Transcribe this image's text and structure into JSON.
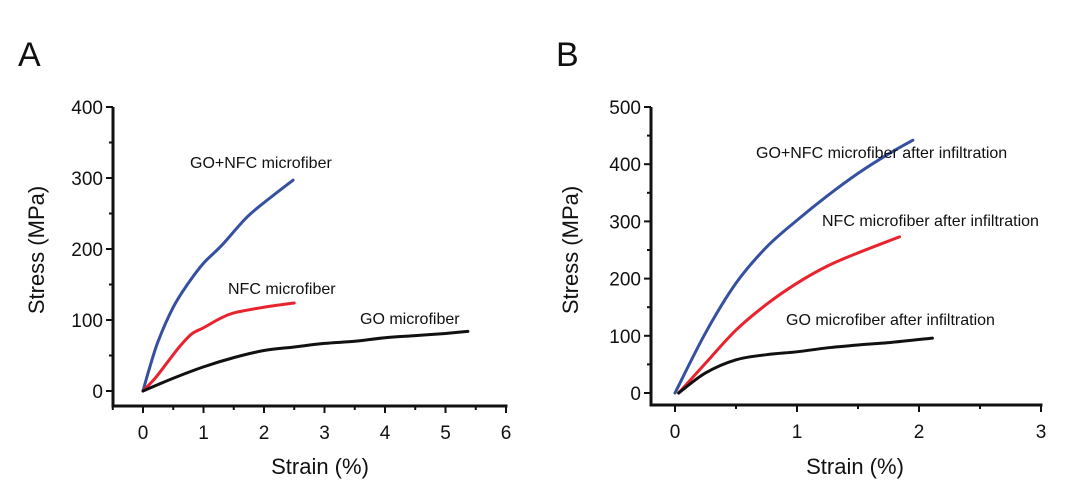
{
  "chart_data": [
    {
      "type": "line",
      "panel": "A",
      "xlabel": "Strain (%)",
      "ylabel": "Stress (MPa)",
      "xlim": [
        -0.5,
        6
      ],
      "ylim": [
        -20,
        400
      ],
      "xticks": [
        0,
        1,
        2,
        3,
        4,
        5,
        6
      ],
      "yticks": [
        0,
        100,
        200,
        300,
        400
      ],
      "grid": false,
      "legend": "none (inline annotations)",
      "series": [
        {
          "name": "GO+NFC microfiber",
          "color": "#3550a0",
          "x": [
            0,
            0.1,
            0.25,
            0.5,
            0.75,
            1.0,
            1.3,
            1.72,
            2.1,
            2.48
          ],
          "y": [
            0,
            30,
            70,
            118,
            152,
            180,
            205,
            245,
            272,
            297
          ]
        },
        {
          "name": "NFC microfiber",
          "color": "#e8232e",
          "x": [
            0,
            0.2,
            0.4,
            0.6,
            0.8,
            1.0,
            1.25,
            1.5,
            2.0,
            2.5
          ],
          "y": [
            0,
            18,
            40,
            62,
            80,
            89,
            101,
            110,
            118,
            124
          ]
        },
        {
          "name": "GO microfiber",
          "color": "#111111",
          "x": [
            0,
            0.5,
            1.0,
            1.5,
            2.0,
            2.5,
            3.0,
            3.5,
            4.0,
            4.5,
            5.0,
            5.37
          ],
          "y": [
            0,
            18,
            34,
            47,
            57,
            62,
            67,
            70,
            75,
            78,
            81,
            84
          ]
        }
      ],
      "annotations": [
        "GO+NFC microfiber",
        "NFC microfiber",
        "GO microfiber"
      ]
    },
    {
      "type": "line",
      "panel": "B",
      "xlabel": "Strain (%)",
      "ylabel": "Stress (MPa)",
      "xlim": [
        -0.2,
        3
      ],
      "ylim": [
        -20,
        500
      ],
      "xticks": [
        0,
        1,
        2,
        3
      ],
      "yticks": [
        0,
        100,
        200,
        300,
        400,
        500
      ],
      "grid": false,
      "legend": "none (inline annotations)",
      "series": [
        {
          "name": "GO+NFC microfiber after infiltration",
          "color": "#3550a0",
          "x": [
            0,
            0.25,
            0.5,
            0.75,
            1.0,
            1.25,
            1.5,
            1.75,
            1.95
          ],
          "y": [
            0,
            105,
            192,
            255,
            302,
            345,
            384,
            418,
            442
          ]
        },
        {
          "name": "NFC microfiber after infiltration",
          "color": "#e8232e",
          "x": [
            0.03,
            0.25,
            0.5,
            0.75,
            1.0,
            1.25,
            1.5,
            1.84
          ],
          "y": [
            0,
            52,
            110,
            155,
            192,
            222,
            245,
            273
          ]
        },
        {
          "name": "GO microfiber after infiltration",
          "color": "#111111",
          "x": [
            0.03,
            0.25,
            0.5,
            0.75,
            1.0,
            1.25,
            1.5,
            1.75,
            2.11
          ],
          "y": [
            0,
            35,
            58,
            67,
            72,
            79,
            84,
            88,
            96
          ]
        }
      ],
      "annotations": [
        "GO+NFC microfiber after infiltration",
        "NFC microfiber after infiltration",
        "GO microfiber after infiltration"
      ]
    }
  ],
  "panels": {
    "a_label": "A",
    "b_label": "B"
  }
}
